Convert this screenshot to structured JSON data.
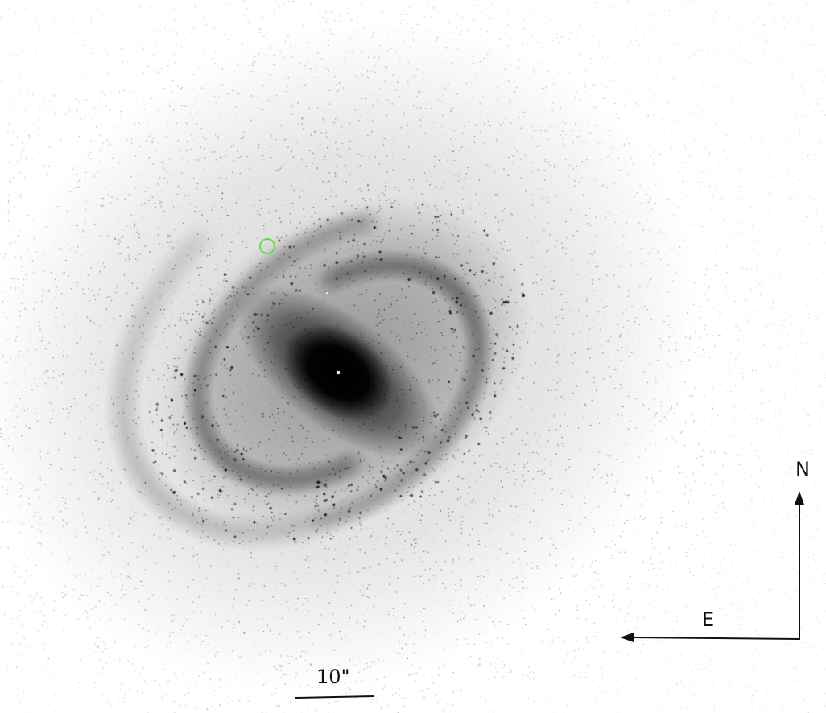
{
  "image": {
    "description_type": "inverted grayscale astronomical image of a barred spiral galaxy",
    "background_color": "#ffffff",
    "galaxy_color": "#000000"
  },
  "compass": {
    "north_label": "N",
    "east_label": "E",
    "arrow_color": "#111111"
  },
  "scale_bar": {
    "label": "10\"",
    "color": "#111111"
  },
  "marker": {
    "shape": "circle",
    "color": "#66dd44"
  }
}
